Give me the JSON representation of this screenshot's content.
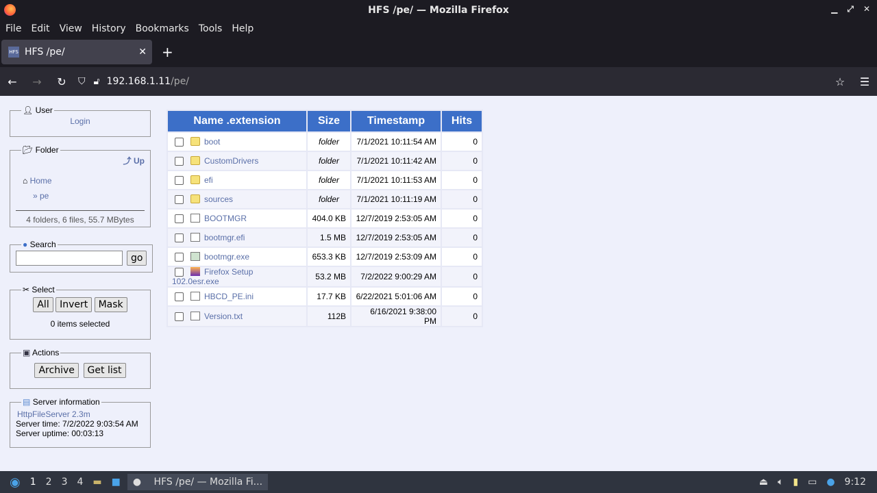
{
  "window": {
    "title": "HFS /pe/ — Mozilla Firefox"
  },
  "menu": [
    "File",
    "Edit",
    "View",
    "History",
    "Bookmarks",
    "Tools",
    "Help"
  ],
  "tab": {
    "favicon": "HFS",
    "label": "HFS /pe/"
  },
  "url": {
    "host": "192.168.1.11",
    "path": "/pe/"
  },
  "user": {
    "legend": "User",
    "login": "Login"
  },
  "folder": {
    "legend": "Folder",
    "up": "Up",
    "home": "Home",
    "current": "» pe",
    "summary": "4 folders, 6 files, 55.7 MBytes"
  },
  "search": {
    "legend": "Search",
    "value": "",
    "go": "go"
  },
  "select": {
    "legend": "Select",
    "all": "All",
    "invert": "Invert",
    "mask": "Mask",
    "status": "0 items selected"
  },
  "actions": {
    "legend": "Actions",
    "archive": "Archive",
    "getlist": "Get list"
  },
  "server": {
    "legend": "Server information",
    "link": "HttpFileServer 2.3m",
    "time": "Server time: 7/2/2022 9:03:54 AM",
    "uptime": "Server uptime: 00:03:13"
  },
  "table": {
    "headers": [
      "Name .extension",
      "Size",
      "Timestamp",
      "Hits"
    ],
    "rows": [
      {
        "icon": "folder",
        "name": "boot",
        "size": "folder",
        "ts": "7/1/2021 10:11:54 AM",
        "hits": "0"
      },
      {
        "icon": "folder",
        "name": "CustomDrivers",
        "size": "folder",
        "ts": "7/1/2021 10:11:42 AM",
        "hits": "0"
      },
      {
        "icon": "folder",
        "name": "efi",
        "size": "folder",
        "ts": "7/1/2021 10:11:53 AM",
        "hits": "0"
      },
      {
        "icon": "folder",
        "name": "sources",
        "size": "folder",
        "ts": "7/1/2021 10:11:19 AM",
        "hits": "0"
      },
      {
        "icon": "file",
        "name": "BOOTMGR",
        "size": "404.0 KB",
        "ts": "12/7/2019 2:53:05 AM",
        "hits": "0"
      },
      {
        "icon": "file",
        "name": "bootmgr.efi",
        "size": "1.5 MB",
        "ts": "12/7/2019 2:53:05 AM",
        "hits": "0"
      },
      {
        "icon": "exe",
        "name": "bootmgr.exe",
        "size": "653.3 KB",
        "ts": "12/7/2019 2:53:09 AM",
        "hits": "0"
      },
      {
        "icon": "ffx",
        "name": "Firefox Setup 102.0esr.exe",
        "size": "53.2 MB",
        "ts": "7/2/2022 9:00:29 AM",
        "hits": "0"
      },
      {
        "icon": "file",
        "name": "HBCD_PE.ini",
        "size": "17.7 KB",
        "ts": "6/22/2021 5:01:06 AM",
        "hits": "0"
      },
      {
        "icon": "file",
        "name": "Version.txt",
        "size": "112B",
        "ts": "6/16/2021 9:38:00 PM",
        "hits": "0"
      }
    ]
  },
  "taskbar": {
    "workspaces": [
      "1",
      "2",
      "3",
      "4"
    ],
    "window": "HFS /pe/ — Mozilla Fi...",
    "clock": "9:12"
  }
}
